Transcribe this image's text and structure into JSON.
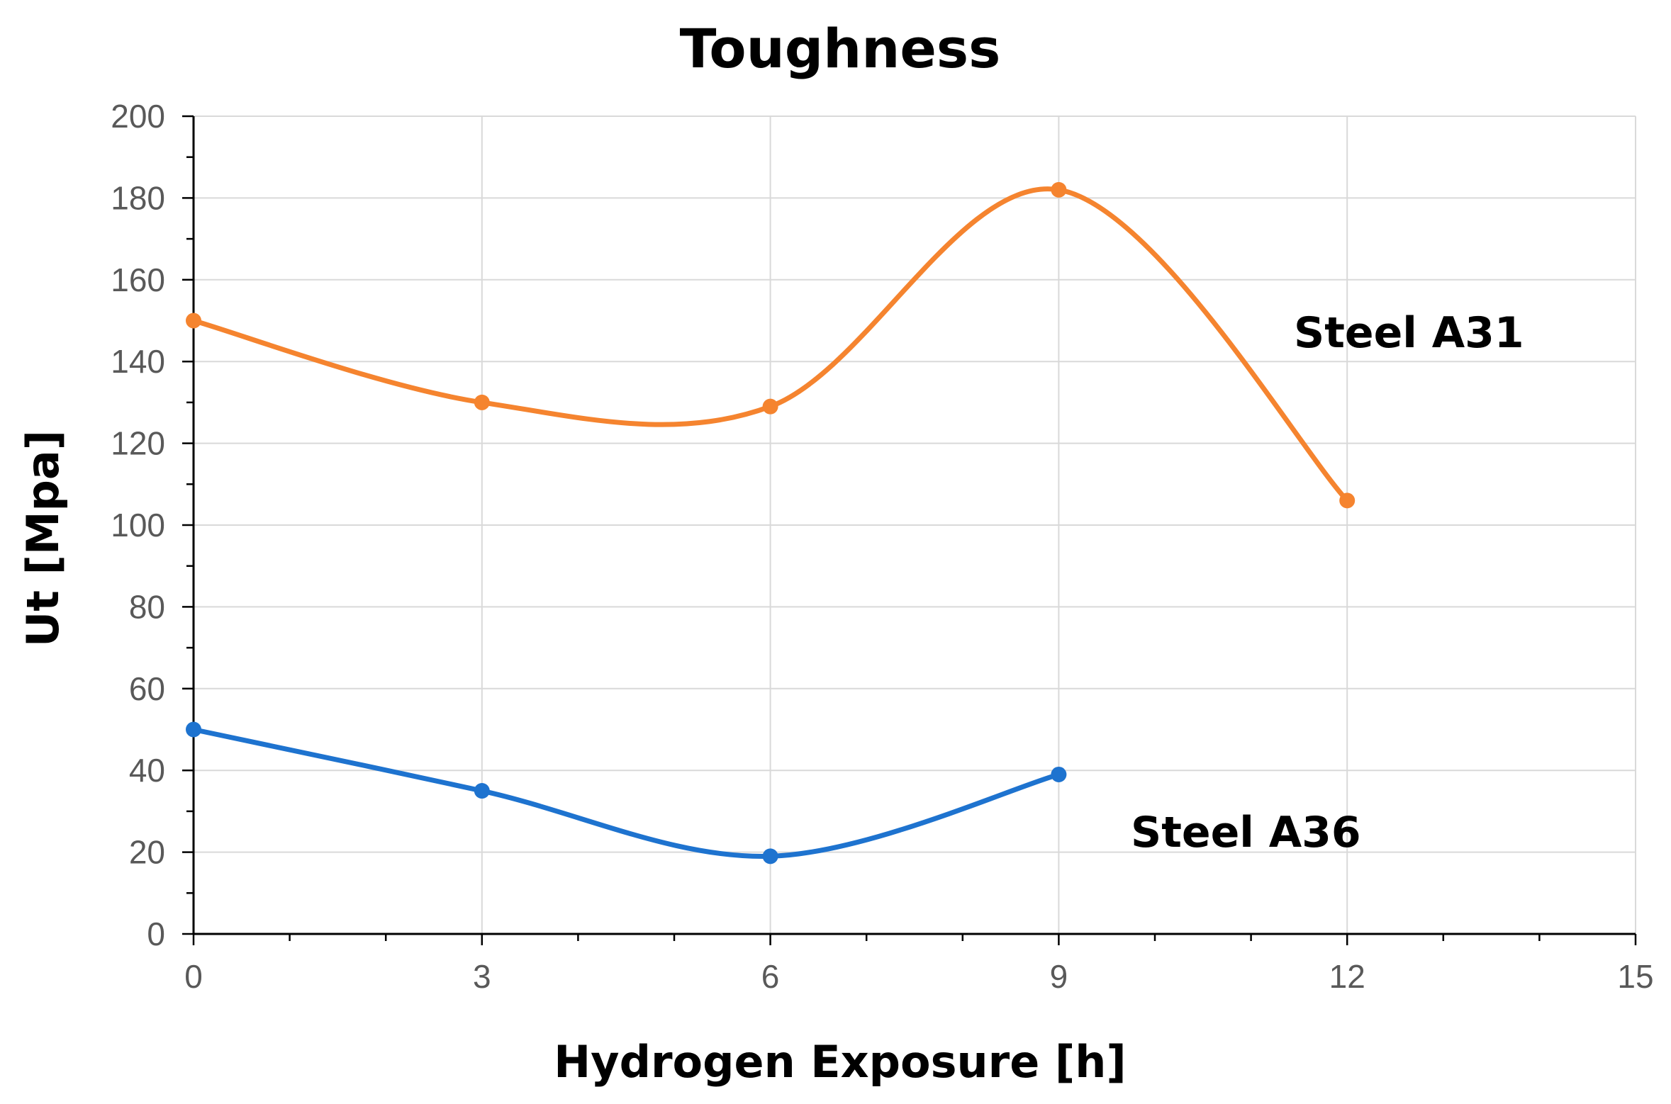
{
  "chart_data": {
    "type": "line",
    "title": "Toughness",
    "xlabel": "Hydrogen Exposure [h]",
    "ylabel": "Ut [Mpa]",
    "xlim": [
      0,
      15
    ],
    "ylim": [
      0,
      200
    ],
    "x_ticks": [
      0,
      3,
      6,
      9,
      12,
      15
    ],
    "y_ticks": [
      0,
      20,
      40,
      60,
      80,
      100,
      120,
      140,
      160,
      180,
      200
    ],
    "x_minor_step": 1,
    "y_minor_step": 10,
    "grid": true,
    "smooth": true,
    "series": [
      {
        "name": "Steel A31",
        "color": "#f5842f",
        "x": [
          0,
          3,
          6,
          9,
          12
        ],
        "values": [
          150,
          130,
          129,
          182,
          106
        ]
      },
      {
        "name": "Steel A36",
        "color": "#1e73cf",
        "x": [
          0,
          3,
          6,
          9
        ],
        "values": [
          50,
          35,
          19,
          39
        ]
      }
    ],
    "annotations": [
      {
        "text": "Steel A31",
        "series": "Steel A31"
      },
      {
        "text": "Steel A36",
        "series": "Steel A36"
      }
    ]
  }
}
